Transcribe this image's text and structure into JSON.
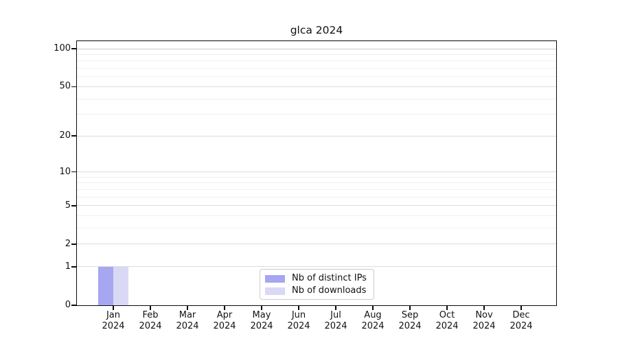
{
  "chart_data": {
    "type": "bar",
    "title": "glca 2024",
    "categories": [
      {
        "month": "Jan",
        "year": "2024"
      },
      {
        "month": "Feb",
        "year": "2024"
      },
      {
        "month": "Mar",
        "year": "2024"
      },
      {
        "month": "Apr",
        "year": "2024"
      },
      {
        "month": "May",
        "year": "2024"
      },
      {
        "month": "Jun",
        "year": "2024"
      },
      {
        "month": "Jul",
        "year": "2024"
      },
      {
        "month": "Aug",
        "year": "2024"
      },
      {
        "month": "Sep",
        "year": "2024"
      },
      {
        "month": "Oct",
        "year": "2024"
      },
      {
        "month": "Nov",
        "year": "2024"
      },
      {
        "month": "Dec",
        "year": "2024"
      }
    ],
    "series": [
      {
        "name": "Nb of distinct IPs",
        "color": "#a6a6f1",
        "values": [
          1,
          0,
          0,
          0,
          0,
          0,
          0,
          0,
          0,
          0,
          0,
          0
        ]
      },
      {
        "name": "Nb of downloads",
        "color": "#d9d9f6",
        "values": [
          1,
          0,
          0,
          0,
          0,
          0,
          0,
          0,
          0,
          0,
          0,
          0
        ]
      }
    ],
    "xlabel": "",
    "ylabel": "",
    "yscale": "log10(1+y)",
    "ylim": [
      0,
      115
    ],
    "yticks": [
      0,
      1,
      2,
      5,
      10,
      20,
      50,
      100
    ],
    "yticks_minor": [
      3,
      4,
      6,
      7,
      8,
      9,
      30,
      40,
      60,
      70,
      80,
      90
    ],
    "grid": "horizontal major+minor",
    "grid_color_major": "#dcdcdc",
    "grid_color_top": "#c9c9c9",
    "grid_color_minor": "#f0f0f0",
    "legend_position": "bottom-center-inside"
  }
}
